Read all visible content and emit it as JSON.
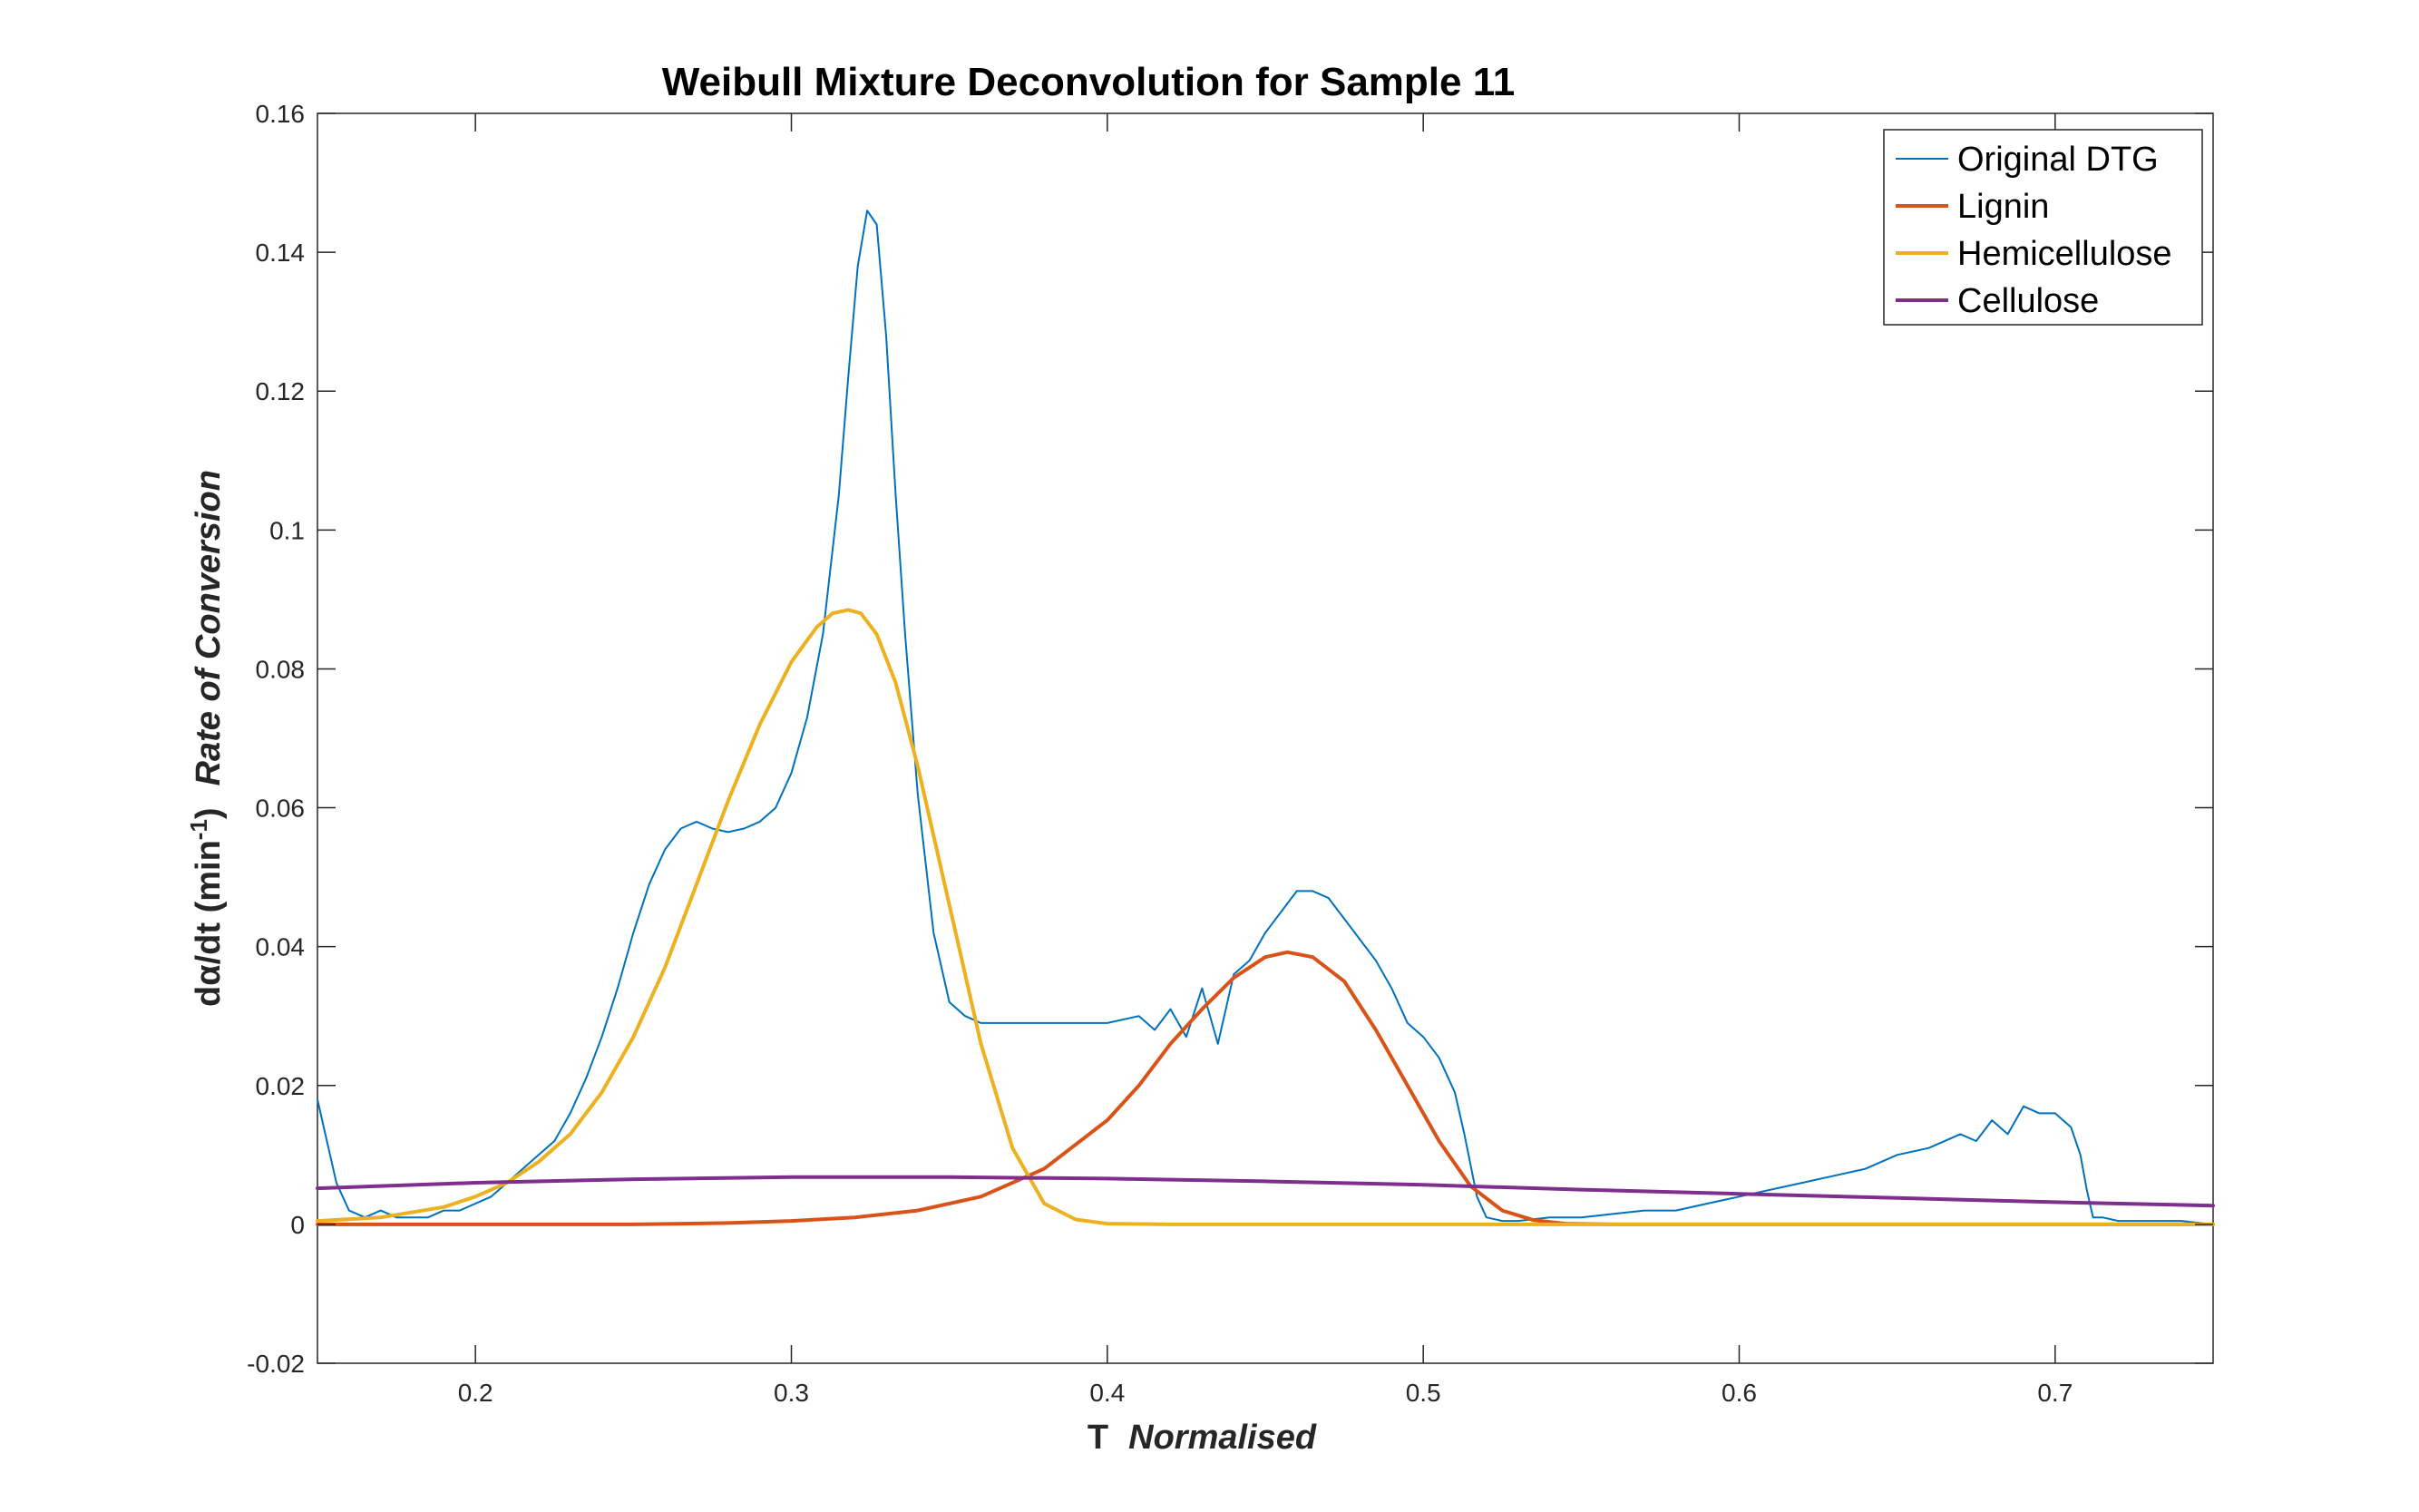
{
  "chart_data": {
    "type": "line",
    "title": "Weibull Mixture Deconvolution for Sample 11",
    "xlabel_main": "T",
    "xlabel_italic": "Normalised",
    "ylabel_main": "dα/dt (min",
    "ylabel_sup": "-1",
    "ylabel_close": ")",
    "ylabel_italic": "Rate of Conversion",
    "xlim": [
      0.15,
      0.75
    ],
    "ylim": [
      -0.02,
      0.16
    ],
    "xticks": [
      0.2,
      0.3,
      0.4,
      0.5,
      0.6,
      0.7
    ],
    "xtick_labels": [
      "0.2",
      "0.3",
      "0.4",
      "0.5",
      "0.6",
      "0.7"
    ],
    "yticks": [
      -0.02,
      0,
      0.02,
      0.04,
      0.06,
      0.08,
      0.1,
      0.12,
      0.14,
      0.16
    ],
    "ytick_labels": [
      "-0.02",
      "0",
      "0.02",
      "0.04",
      "0.06",
      "0.08",
      "0.1",
      "0.12",
      "0.14",
      "0.16"
    ],
    "grid": false,
    "legend_position": "top-right",
    "series": [
      {
        "name": "Original DTG",
        "color": "#0072BD",
        "width": 2,
        "x": [
          0.15,
          0.153,
          0.156,
          0.16,
          0.165,
          0.17,
          0.175,
          0.18,
          0.185,
          0.19,
          0.195,
          0.2,
          0.205,
          0.21,
          0.215,
          0.22,
          0.225,
          0.23,
          0.235,
          0.24,
          0.245,
          0.25,
          0.255,
          0.26,
          0.265,
          0.27,
          0.275,
          0.28,
          0.285,
          0.29,
          0.295,
          0.3,
          0.305,
          0.31,
          0.315,
          0.318,
          0.321,
          0.324,
          0.327,
          0.33,
          0.333,
          0.336,
          0.34,
          0.345,
          0.35,
          0.355,
          0.36,
          0.365,
          0.37,
          0.38,
          0.39,
          0.4,
          0.41,
          0.415,
          0.42,
          0.425,
          0.43,
          0.435,
          0.44,
          0.445,
          0.45,
          0.455,
          0.46,
          0.465,
          0.47,
          0.475,
          0.48,
          0.485,
          0.49,
          0.495,
          0.5,
          0.505,
          0.51,
          0.513,
          0.517,
          0.52,
          0.525,
          0.53,
          0.54,
          0.55,
          0.56,
          0.57,
          0.58,
          0.59,
          0.6,
          0.61,
          0.62,
          0.63,
          0.64,
          0.65,
          0.66,
          0.67,
          0.675,
          0.68,
          0.685,
          0.69,
          0.695,
          0.7,
          0.705,
          0.708,
          0.71,
          0.712,
          0.715,
          0.72,
          0.73,
          0.74,
          0.75
        ],
        "y": [
          0.018,
          0.012,
          0.006,
          0.002,
          0.001,
          0.002,
          0.001,
          0.001,
          0.001,
          0.002,
          0.002,
          0.003,
          0.004,
          0.006,
          0.008,
          0.01,
          0.012,
          0.016,
          0.021,
          0.027,
          0.034,
          0.042,
          0.049,
          0.054,
          0.057,
          0.058,
          0.057,
          0.0565,
          0.057,
          0.058,
          0.06,
          0.065,
          0.073,
          0.085,
          0.105,
          0.122,
          0.138,
          0.146,
          0.144,
          0.128,
          0.105,
          0.085,
          0.062,
          0.042,
          0.032,
          0.03,
          0.029,
          0.029,
          0.029,
          0.029,
          0.029,
          0.029,
          0.03,
          0.028,
          0.031,
          0.027,
          0.034,
          0.026,
          0.036,
          0.038,
          0.042,
          0.045,
          0.048,
          0.048,
          0.047,
          0.044,
          0.041,
          0.038,
          0.034,
          0.029,
          0.027,
          0.024,
          0.019,
          0.013,
          0.004,
          0.001,
          0.0005,
          0.0005,
          0.001,
          0.001,
          0.0015,
          0.002,
          0.002,
          0.003,
          0.004,
          0.005,
          0.006,
          0.007,
          0.008,
          0.01,
          0.011,
          0.013,
          0.012,
          0.015,
          0.013,
          0.017,
          0.016,
          0.016,
          0.014,
          0.01,
          0.005,
          0.001,
          0.001,
          0.0005,
          0.0005,
          0.0005,
          0.0
        ]
      },
      {
        "name": "Lignin",
        "color": "#D95319",
        "width": 4,
        "x": [
          0.15,
          0.2,
          0.25,
          0.28,
          0.3,
          0.32,
          0.34,
          0.36,
          0.38,
          0.4,
          0.41,
          0.42,
          0.43,
          0.44,
          0.45,
          0.457,
          0.465,
          0.475,
          0.485,
          0.495,
          0.505,
          0.515,
          0.525,
          0.535,
          0.545,
          0.56,
          0.6,
          0.7,
          0.75
        ],
        "y": [
          0.0,
          0.0,
          0.0,
          0.0002,
          0.0005,
          0.001,
          0.002,
          0.004,
          0.008,
          0.015,
          0.02,
          0.026,
          0.031,
          0.0355,
          0.0385,
          0.0392,
          0.0385,
          0.035,
          0.028,
          0.02,
          0.012,
          0.0055,
          0.002,
          0.0006,
          0.0001,
          0.0,
          0.0,
          0.0,
          0.0
        ]
      },
      {
        "name": "Hemicellulose",
        "color": "#EDB120",
        "width": 4,
        "x": [
          0.15,
          0.17,
          0.19,
          0.2,
          0.21,
          0.22,
          0.23,
          0.24,
          0.25,
          0.26,
          0.27,
          0.28,
          0.29,
          0.3,
          0.308,
          0.313,
          0.318,
          0.322,
          0.327,
          0.333,
          0.34,
          0.35,
          0.36,
          0.37,
          0.38,
          0.39,
          0.4,
          0.42,
          0.5,
          0.75
        ],
        "y": [
          0.0005,
          0.001,
          0.0025,
          0.004,
          0.006,
          0.009,
          0.013,
          0.019,
          0.027,
          0.037,
          0.049,
          0.061,
          0.072,
          0.081,
          0.086,
          0.088,
          0.0885,
          0.088,
          0.085,
          0.078,
          0.066,
          0.046,
          0.026,
          0.011,
          0.003,
          0.0007,
          0.0001,
          0.0,
          0.0,
          0.0
        ]
      },
      {
        "name": "Cellulose",
        "color": "#7E2F8E",
        "width": 4,
        "x": [
          0.15,
          0.2,
          0.25,
          0.3,
          0.35,
          0.4,
          0.45,
          0.5,
          0.55,
          0.6,
          0.65,
          0.7,
          0.75
        ],
        "y": [
          0.0052,
          0.006,
          0.0065,
          0.0068,
          0.0068,
          0.0066,
          0.0062,
          0.0057,
          0.005,
          0.0044,
          0.0038,
          0.0032,
          0.0027
        ]
      }
    ]
  }
}
